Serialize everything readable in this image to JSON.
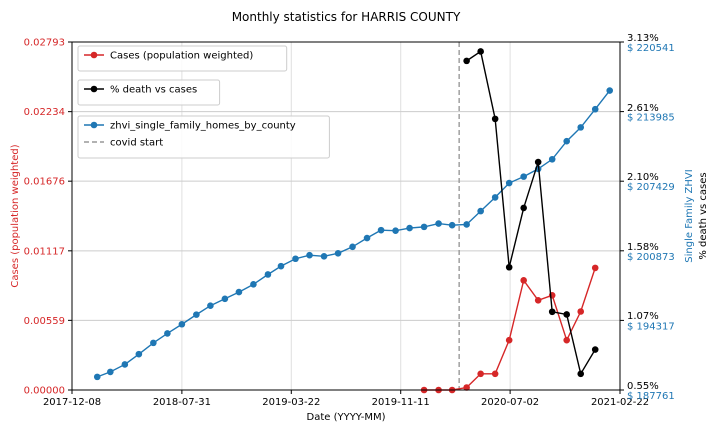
{
  "chart_data": {
    "type": "line",
    "title": "Monthly statistics for HARRIS COUNTY",
    "xlabel": "Date (YYYY-MM)",
    "ylabel_left": "Cases (population weighted)",
    "ylabel_right_inner": "Single Family ZHVI",
    "ylabel_right_outer": "% death vs cases",
    "x_ticks": [
      "2017-12-08",
      "2018-07-31",
      "2019-03-22",
      "2019-11-11",
      "2020-07-02",
      "2021-02-22"
    ],
    "x_range": [
      "2017-12-08",
      "2021-02-22"
    ],
    "left_axis": {
      "ylim": [
        0,
        0.02793
      ],
      "ticks": [
        "0.00000",
        "0.00559",
        "0.01117",
        "0.01676",
        "0.02234",
        "0.02793"
      ]
    },
    "zhvi_axis": {
      "ylim": [
        187761,
        220541
      ],
      "ticks": [
        "$ 187761",
        "$ 194317",
        "$ 200873",
        "$ 207429",
        "$ 213985",
        "$ 220541"
      ]
    },
    "death_axis": {
      "ylim": [
        0.55,
        3.13
      ],
      "ticks": [
        "0.55%",
        "1.07%",
        "1.58%",
        "2.10%",
        "2.61%",
        "3.13%"
      ]
    },
    "grid": true,
    "covid_start": "2020-03-15",
    "colors": {
      "cases": "#d62728",
      "death": "#000000",
      "zhvi": "#1f77b4",
      "covid": "#999999"
    },
    "legends": [
      {
        "entries": [
          {
            "label": "Cases (population weighted)",
            "series": "cases"
          }
        ]
      },
      {
        "entries": [
          {
            "label": "% death vs cases",
            "series": "death"
          }
        ]
      },
      {
        "entries": [
          {
            "label": "zhvi_single_family_homes_by_county",
            "series": "zhvi"
          },
          {
            "label": "covid start",
            "series": "covid"
          }
        ]
      }
    ],
    "series": {
      "zhvi": {
        "name": "zhvi_single_family_homes_by_county",
        "x": [
          "2018-01-31",
          "2018-02-28",
          "2018-03-31",
          "2018-04-30",
          "2018-05-31",
          "2018-06-30",
          "2018-07-31",
          "2018-08-31",
          "2018-09-30",
          "2018-10-31",
          "2018-11-30",
          "2018-12-31",
          "2019-01-31",
          "2019-02-28",
          "2019-03-31",
          "2019-04-30",
          "2019-05-31",
          "2019-06-30",
          "2019-07-31",
          "2019-08-31",
          "2019-09-30",
          "2019-10-31",
          "2019-11-30",
          "2019-12-31",
          "2020-01-31",
          "2020-02-29",
          "2020-03-31",
          "2020-04-30",
          "2020-05-31",
          "2020-06-30",
          "2020-07-31",
          "2020-08-31",
          "2020-09-30",
          "2020-10-31",
          "2020-11-30",
          "2020-12-31",
          "2021-01-31"
        ],
        "values": [
          188998,
          189467,
          190167,
          191139,
          192199,
          193089,
          193954,
          194860,
          195700,
          196354,
          196984,
          197713,
          198642,
          199428,
          200124,
          200458,
          200356,
          200639,
          201250,
          202075,
          202819,
          202769,
          203017,
          203126,
          203439,
          203285,
          203353,
          204612,
          205904,
          207255,
          207861,
          208585,
          209495,
          211196,
          212498,
          214208,
          215969
        ]
      },
      "cases": {
        "name": "Cases (population weighted)",
        "x": [
          "2019-12-31",
          "2020-01-31",
          "2020-02-29",
          "2020-03-31",
          "2020-04-30",
          "2020-05-31",
          "2020-06-30",
          "2020-07-31",
          "2020-08-31",
          "2020-09-30",
          "2020-10-31",
          "2020-11-30",
          "2020-12-31",
          "2021-01-31"
        ],
        "values": [
          0.0,
          0.0,
          0.0,
          0.0002,
          0.0013,
          0.0013,
          0.004,
          0.0088,
          0.0072,
          0.0076,
          0.004,
          0.0063,
          0.0098,
          null
        ]
      },
      "death": {
        "name": "% death vs cases",
        "x": [
          "2020-03-31",
          "2020-04-30",
          "2020-05-31",
          "2020-06-30",
          "2020-07-31",
          "2020-08-31",
          "2020-09-30",
          "2020-10-31",
          "2020-11-30",
          "2020-12-31",
          "2021-01-31"
        ],
        "values": [
          2.99,
          3.06,
          2.56,
          1.46,
          1.9,
          2.24,
          1.13,
          1.11,
          0.67,
          0.85,
          null
        ]
      }
    }
  }
}
